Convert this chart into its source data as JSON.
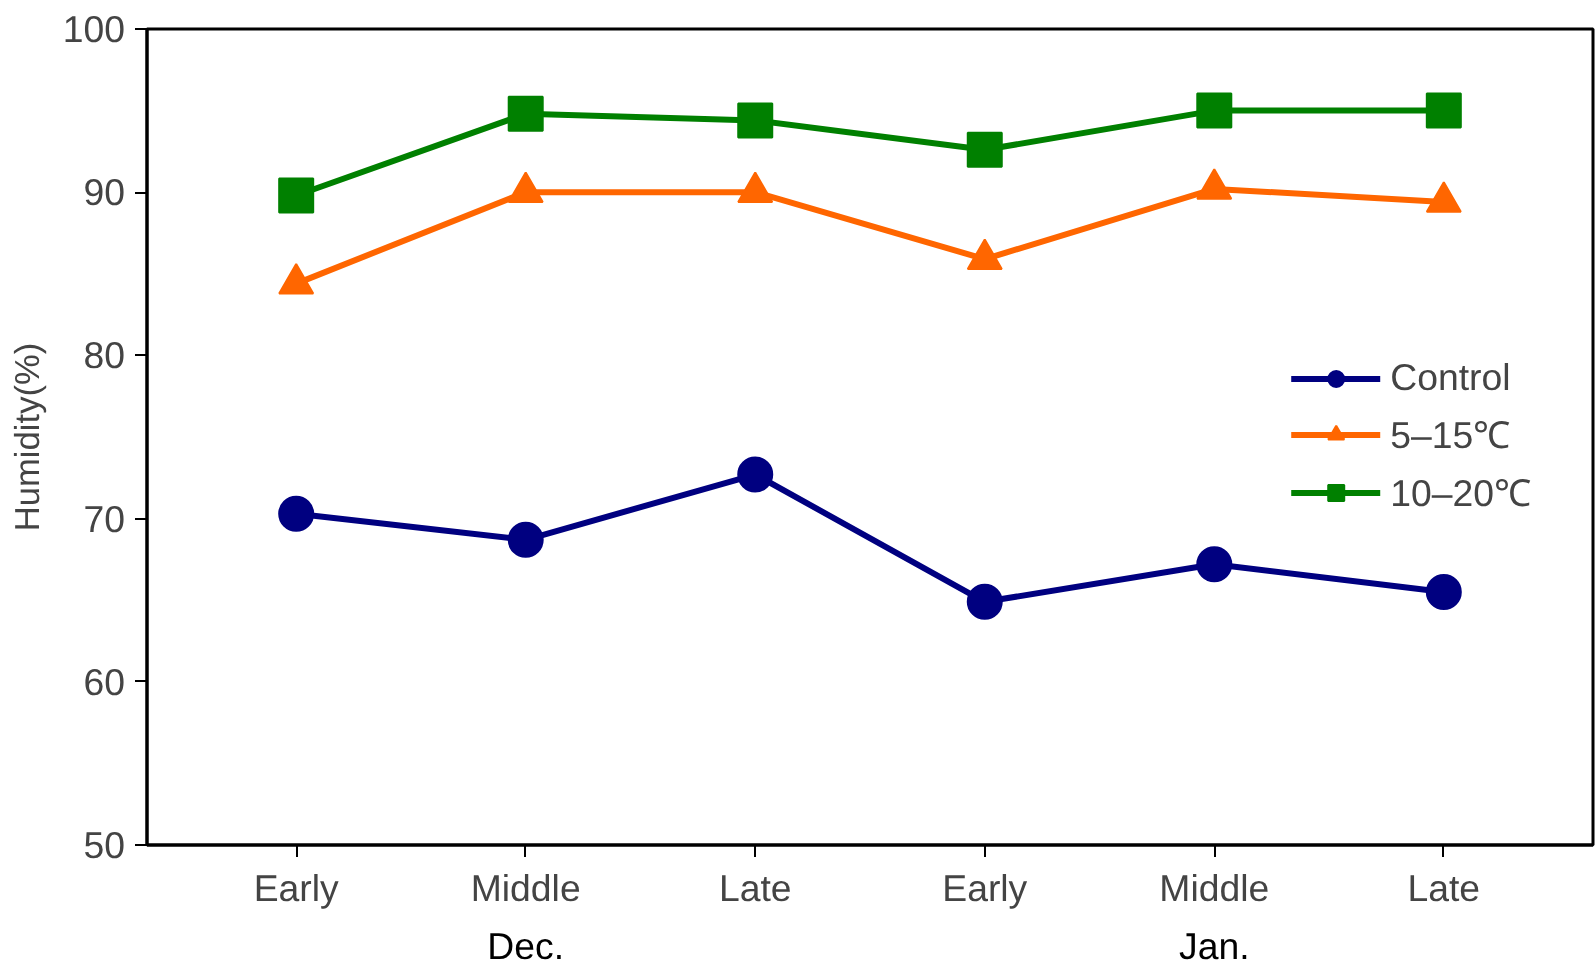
{
  "chart_data": {
    "type": "line",
    "ylabel": "Humidity(%)",
    "categories": [
      "Early",
      "Middle",
      "Late",
      "Early",
      "Middle",
      "Late"
    ],
    "annotations": [
      "Dec.",
      "Jan."
    ],
    "ylim": [
      50,
      100
    ],
    "yticks": [
      50,
      60,
      70,
      80,
      90,
      100
    ],
    "grid": false,
    "legend": "right",
    "series": [
      {
        "name": "Control",
        "color": "#000080",
        "marker": "circle",
        "values": [
          70.3,
          68.7,
          72.7,
          64.9,
          67.2,
          65.5
        ]
      },
      {
        "name": "5–15℃",
        "color": "#ff6600",
        "marker": "triangle",
        "values": [
          84.4,
          90.0,
          90.0,
          85.9,
          90.2,
          89.4
        ]
      },
      {
        "name": "10–20℃",
        "color": "#008000",
        "marker": "square",
        "values": [
          89.8,
          94.8,
          94.4,
          92.6,
          95.0,
          95.0
        ]
      }
    ]
  }
}
